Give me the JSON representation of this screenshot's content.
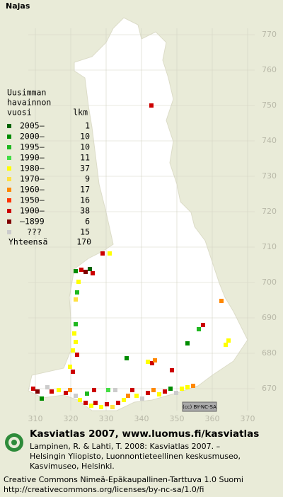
{
  "map": {
    "title": "Najas",
    "legend": {
      "header": [
        "Uusimman",
        "havainnon",
        "vuosi"
      ],
      "count_header": "lkm",
      "rows": [
        {
          "label": "2005–",
          "count": 1,
          "color": "#006400"
        },
        {
          "label": "2000–",
          "count": 10,
          "color": "#008c00"
        },
        {
          "label": "1995–",
          "count": 10,
          "color": "#1fb81f"
        },
        {
          "label": "1990–",
          "count": 11,
          "color": "#44dd44"
        },
        {
          "label": "1980–",
          "count": 37,
          "color": "#ffff00"
        },
        {
          "label": "1970–",
          "count": 9,
          "color": "#ffe040"
        },
        {
          "label": "1960–",
          "count": 17,
          "color": "#ff8800"
        },
        {
          "label": "1950–",
          "count": 16,
          "color": "#ff3300"
        },
        {
          "label": "1900–",
          "count": 38,
          "color": "#cc0000"
        },
        {
          "label": "–1899",
          "count": 6,
          "color": "#800000"
        },
        {
          "label": "???",
          "count": 15,
          "color": "#cccccc"
        }
      ],
      "total_label": "Yhteensä",
      "total": 170
    },
    "grid": {
      "y_labels": [
        770,
        760,
        750,
        740,
        730,
        720,
        710,
        700,
        690,
        680,
        670
      ],
      "x_labels": [
        310,
        320,
        330,
        340,
        350,
        360,
        370
      ]
    },
    "license_badge": "(cc) BY-NC-SA",
    "footer": {
      "heading": "Kasviatlas 2007, www.luomus.fi/kasviatlas",
      "citation": [
        "Lampinen, R. & Lahti, T. 2008: Kasviatlas 2007. –",
        "Helsingin Yliopisto, Luonnontieteellinen keskusmuseo,",
        "Kasvimuseo, Helsinki."
      ],
      "license": [
        "Creative Commons Nimeä-Epäkaupallinen-Tarttuva 1.0 Suomi",
        "http://creativecommons.org/licenses/by-nc-sa/1.0/fi"
      ]
    }
  }
}
